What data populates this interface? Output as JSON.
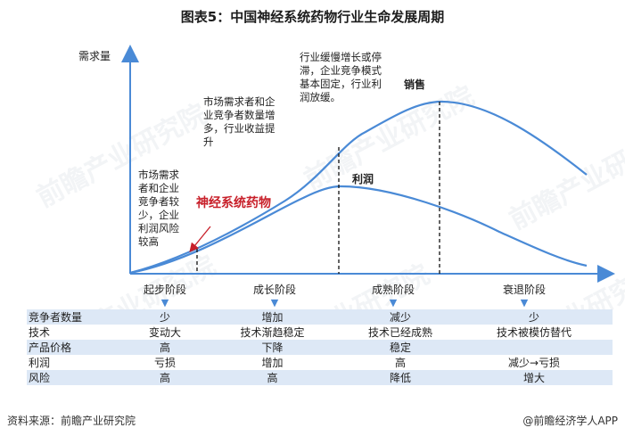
{
  "title": "图表5：中国神经系统药物行业生命发展周期",
  "axis": {
    "ylabel": "需求量"
  },
  "curves": {
    "sales_label": "销售",
    "profit_label": "利润"
  },
  "highlight_label": "神经系统药物",
  "stage_notes": {
    "intro": "市场需求\n者和企业\n竞争者较\n少，企业\n利润风险\n较高",
    "growth": "市场需求者和企\n业竞争者数量增\n多，行业收益提\n升",
    "maturity": "行业缓慢增长或停\n滞，企业竞争模式\n基本固定，行业利\n润放缓。"
  },
  "stages": [
    "起步阶段",
    "成长阶段",
    "成熟阶段",
    "衰退阶段"
  ],
  "matrix": [
    {
      "label": "竞争者数量",
      "cells": [
        "少",
        "增加",
        "减少",
        "少"
      ]
    },
    {
      "label": "技术",
      "cells": [
        "变动大",
        "技术渐趋稳定",
        "技术已经成熟",
        "技术被模仿替代"
      ]
    },
    {
      "label": "产品价格",
      "cells": [
        "高",
        "下降",
        "稳定",
        ""
      ]
    },
    {
      "label": "利润",
      "cells": [
        "亏损",
        "增加",
        "高",
        "减少→亏损"
      ]
    },
    {
      "label": "风险",
      "cells": [
        "高",
        "高",
        "降低",
        "增大"
      ]
    }
  ],
  "footer": {
    "source": "资料来源：前瞻产业研究院",
    "brand": "@前瞻经济学人APP"
  },
  "watermark": "前瞻产业研究院",
  "colors": {
    "curve": "#4a8ad6",
    "highlight": "#c8202a",
    "row_fill": "#dde8f6"
  }
}
